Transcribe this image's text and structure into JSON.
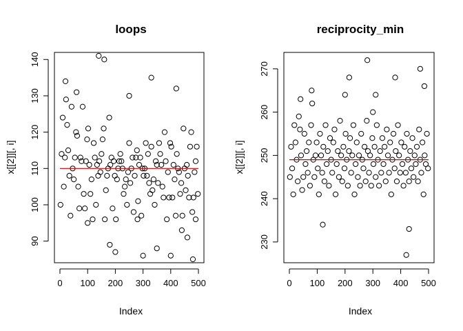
{
  "style": {
    "point_color": "#000000",
    "mean_line_color": "#cc0000",
    "background": "#ffffff",
    "marker": "open-circle",
    "box": true,
    "grid": false
  },
  "chart_data": [
    {
      "type": "scatter",
      "title": "loops",
      "xlabel": "Index",
      "ylabel": "x[[2]][, i]",
      "xlim": [
        0,
        500
      ],
      "ylim": [
        85,
        141
      ],
      "xticks": [
        0,
        100,
        200,
        300,
        400,
        500
      ],
      "yticks": [
        90,
        100,
        110,
        120,
        130,
        140
      ],
      "mean_line": 110,
      "series": [
        {
          "x": [
            2,
            6,
            10,
            14,
            18,
            22,
            26,
            30,
            34,
            38,
            42,
            46,
            50,
            54,
            58,
            62,
            66,
            70,
            74,
            78,
            82,
            86,
            90,
            94,
            98,
            102,
            106,
            110,
            114,
            118,
            122,
            126,
            130,
            134,
            138,
            142,
            146,
            150,
            154,
            158,
            162,
            166,
            170,
            174,
            178,
            182,
            186,
            190,
            194,
            198,
            202,
            206,
            210,
            214,
            218,
            222,
            226,
            230,
            234,
            238,
            242,
            246,
            250,
            254,
            258,
            262,
            266,
            270,
            274,
            278,
            282,
            286,
            290,
            294,
            298,
            302,
            306,
            310,
            314,
            318,
            322,
            326,
            330,
            334,
            338,
            342,
            346,
            350,
            354,
            358,
            362,
            366,
            370,
            374,
            378,
            382,
            386,
            390,
            394,
            398,
            402,
            406,
            410,
            414,
            418,
            422,
            426,
            430,
            434,
            438,
            442,
            446,
            450,
            454,
            458,
            462,
            466,
            470,
            474,
            478,
            482,
            486,
            490,
            494,
            498,
            20,
            60,
            100,
            140,
            160,
            180,
            200,
            250,
            280,
            300,
            330,
            350,
            400,
            420,
            440,
            460,
            480,
            490
          ],
          "y": [
            100,
            114,
            124,
            105,
            113,
            129,
            122,
            115,
            108,
            97,
            127,
            110,
            107,
            113,
            120,
            119,
            105,
            99,
            113,
            112,
            127,
            103,
            99,
            112,
            118,
            121,
            111,
            103,
            107,
            96,
            117,
            113,
            100,
            111,
            108,
            112,
            109,
            114,
            118,
            121,
            96,
            104,
            108,
            110,
            124,
            111,
            113,
            99,
            112,
            108,
            96,
            107,
            110,
            112,
            114,
            112,
            110,
            103,
            105,
            107,
            100,
            109,
            117,
            106,
            110,
            113,
            98,
            108,
            113,
            115,
            101,
            111,
            113,
            97,
            110,
            108,
            110,
            117,
            108,
            114,
            106,
            103,
            116,
            104,
            107,
            100,
            112,
            111,
            106,
            117,
            114,
            111,
            105,
            102,
            120,
            112,
            96,
            109,
            102,
            117,
            116,
            102,
            111,
            107,
            97,
            114,
            110,
            109,
            103,
            106,
            97,
            121,
            110,
            104,
            111,
            108,
            102,
            116,
            120,
            98,
            102,
            109,
            112,
            116,
            103,
            134,
            131,
            95,
            141,
            140,
            89,
            87,
            130,
            96,
            86,
            135,
            88,
            86,
            132,
            93,
            91,
            85,
            96
          ]
        }
      ]
    },
    {
      "type": "scatter",
      "title": "reciprocity_min",
      "xlabel": "Index",
      "ylabel": "x[[2]][, i]",
      "xlim": [
        0,
        500
      ],
      "ylim": [
        226,
        273
      ],
      "xticks": [
        0,
        100,
        200,
        300,
        400,
        500
      ],
      "yticks": [
        230,
        240,
        250,
        260,
        270
      ],
      "mean_line": 249,
      "series": [
        {
          "x": [
            2,
            6,
            10,
            14,
            18,
            22,
            26,
            30,
            34,
            38,
            42,
            46,
            50,
            54,
            58,
            62,
            66,
            70,
            74,
            78,
            82,
            86,
            90,
            94,
            98,
            102,
            106,
            110,
            114,
            118,
            122,
            126,
            130,
            134,
            138,
            142,
            146,
            150,
            154,
            158,
            162,
            166,
            170,
            174,
            178,
            182,
            186,
            190,
            194,
            198,
            202,
            206,
            210,
            214,
            218,
            222,
            226,
            230,
            234,
            238,
            242,
            246,
            250,
            254,
            258,
            262,
            266,
            270,
            274,
            278,
            282,
            286,
            290,
            294,
            298,
            302,
            306,
            310,
            314,
            318,
            322,
            326,
            330,
            334,
            338,
            342,
            346,
            350,
            354,
            358,
            362,
            366,
            370,
            374,
            378,
            382,
            386,
            390,
            394,
            398,
            402,
            406,
            410,
            414,
            418,
            422,
            426,
            430,
            434,
            438,
            442,
            446,
            450,
            454,
            458,
            462,
            466,
            470,
            474,
            478,
            482,
            486,
            490,
            494,
            498,
            40,
            80,
            120,
            200,
            215,
            280,
            300,
            310,
            380,
            420,
            430,
            470,
            485
          ],
          "y": [
            245,
            252,
            247,
            241,
            257,
            253,
            249,
            244,
            259,
            256,
            250,
            242,
            245,
            255,
            248,
            251,
            246,
            253,
            243,
            257,
            262,
            249,
            245,
            250,
            253,
            247,
            241,
            255,
            250,
            246,
            252,
            244,
            257,
            248,
            251,
            243,
            254,
            249,
            246,
            253,
            256,
            241,
            248,
            251,
            245,
            258,
            250,
            244,
            252,
            247,
            255,
            249,
            243,
            251,
            254,
            246,
            250,
            257,
            241,
            248,
            253,
            245,
            250,
            243,
            255,
            249,
            247,
            252,
            244,
            258,
            251,
            246,
            250,
            243,
            254,
            248,
            252,
            245,
            257,
            249,
            243,
            251,
            246,
            254,
            248,
            252,
            244,
            256,
            250,
            246,
            253,
            241,
            249,
            255,
            247,
            251,
            244,
            257,
            250,
            246,
            253,
            248,
            243,
            252,
            246,
            255,
            249,
            244,
            251,
            247,
            254,
            245,
            250,
            248,
            252,
            244,
            256,
            249,
            246,
            253,
            241,
            250,
            248,
            255,
            247,
            263,
            265,
            234,
            264,
            268,
            272,
            260,
            264,
            268,
            227,
            233,
            270,
            266
          ]
        }
      ]
    }
  ]
}
